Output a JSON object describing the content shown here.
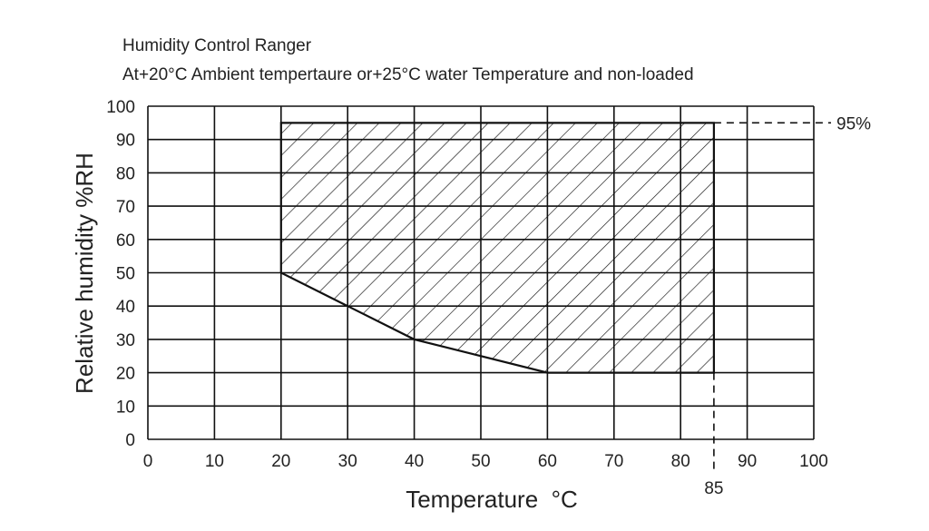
{
  "chart_data": {
    "type": "area",
    "title": "Humidity Control Ranger",
    "subtitle": "At+20°C Ambient tempertaure or+25°C water Temperature and non-loaded",
    "xlabel": "Temperature  °C",
    "ylabel": "Relative humidity %RH",
    "xlim": [
      0,
      100
    ],
    "ylim": [
      0,
      100
    ],
    "x_ticks": [
      0,
      10,
      20,
      30,
      40,
      50,
      60,
      70,
      80,
      90,
      100
    ],
    "y_ticks": [
      0,
      10,
      20,
      30,
      40,
      50,
      60,
      70,
      80,
      90,
      100
    ],
    "x_tick_labels": [
      "0",
      "10",
      "20",
      "30",
      "40",
      "50",
      "60",
      "70",
      "80",
      "90",
      "100"
    ],
    "y_tick_labels": [
      "0",
      "10",
      "20",
      "30",
      "40",
      "50",
      "60",
      "70",
      "80",
      "90",
      "100"
    ],
    "grid": true,
    "region": {
      "fill": "hatched",
      "boundary": [
        {
          "x": 20,
          "y": 95
        },
        {
          "x": 85,
          "y": 95
        },
        {
          "x": 85,
          "y": 20
        },
        {
          "x": 60,
          "y": 20
        },
        {
          "x": 40,
          "y": 30
        },
        {
          "x": 30,
          "y": 40
        },
        {
          "x": 20,
          "y": 50
        }
      ]
    },
    "annotations": [
      {
        "label": "95%",
        "axis": "y",
        "value": 95,
        "line": "dashed"
      },
      {
        "label": "85",
        "axis": "x",
        "value": 85,
        "line": "dashed"
      }
    ],
    "colors": {
      "line": "#111111",
      "grid": "#111111",
      "text": "#222222",
      "background": "#ffffff"
    }
  }
}
